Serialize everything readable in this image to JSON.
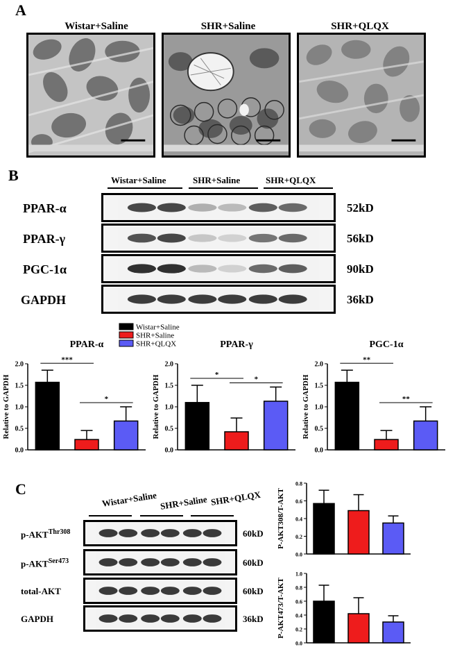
{
  "panel_a": {
    "letter": "A",
    "titles": [
      "Wistar+Saline",
      "SHR+Saline",
      "SHR+QLQX"
    ]
  },
  "panel_b": {
    "letter": "B",
    "groups": [
      "Wistar+Saline",
      "SHR+Saline",
      "SHR+QLQX"
    ],
    "blots": [
      {
        "label": "PPAR-α",
        "kd": "52kD",
        "intensity": [
          0.8,
          0.8,
          0.35,
          0.3,
          0.7,
          0.65
        ]
      },
      {
        "label": "PPAR-γ",
        "kd": "56kD",
        "intensity": [
          0.75,
          0.8,
          0.25,
          0.2,
          0.6,
          0.65
        ]
      },
      {
        "label": "PGC-1α",
        "kd": "90kD",
        "intensity": [
          0.9,
          0.9,
          0.3,
          0.2,
          0.65,
          0.7
        ]
      },
      {
        "label": "GAPDH",
        "kd": "36kD",
        "intensity": [
          0.85,
          0.85,
          0.85,
          0.85,
          0.85,
          0.85
        ]
      }
    ]
  },
  "panel_c": {
    "letter": "C",
    "groups": [
      "Wistar+Saline",
      "SHR+Saline",
      "SHR+QLQX"
    ],
    "blots": [
      {
        "label_main": "p-AKT",
        "label_sup": "Thr308",
        "kd": "60kD"
      },
      {
        "label_main": "p-AKT",
        "label_sup": "Ser473",
        "kd": "60kD"
      },
      {
        "label_main": "total-AKT",
        "label_sup": "",
        "kd": "60kD"
      },
      {
        "label_main": "GAPDH",
        "label_sup": "",
        "kd": "36kD"
      }
    ]
  },
  "colors": {
    "wistar": "#000000",
    "shr": "#ee1c1c",
    "qlqx": "#5b5bf5"
  },
  "chart_data": [
    {
      "type": "bar",
      "title": "PPAR-α",
      "ylabel": "Relative to GAPDH",
      "categories": [
        "Wistar+Saline",
        "SHR+Saline",
        "SHR+QLQX"
      ],
      "values": [
        1.57,
        0.24,
        0.67
      ],
      "errors": [
        0.28,
        0.21,
        0.33
      ],
      "ylim": [
        0,
        2.0
      ],
      "yticks": [
        "0.0",
        "0.5",
        "1.0",
        "1.5",
        "2.0"
      ],
      "sig": [
        {
          "from": 0,
          "to": 1,
          "label": "***"
        },
        {
          "from": 1,
          "to": 2,
          "label": "*"
        }
      ],
      "legend": {
        "position": "top",
        "entries": [
          "Wistar+Saline",
          "SHR+Saline",
          "SHR+QLQX"
        ]
      }
    },
    {
      "type": "bar",
      "title": "PPAR-γ",
      "ylabel": "Relative to GAPDH",
      "categories": [
        "Wistar+Saline",
        "SHR+Saline",
        "SHR+QLQX"
      ],
      "values": [
        1.1,
        0.42,
        1.13
      ],
      "errors": [
        0.4,
        0.32,
        0.33
      ],
      "ylim": [
        0,
        2.0
      ],
      "yticks": [
        "0.0",
        "0.5",
        "1.0",
        "1.5",
        "2.0"
      ],
      "sig": [
        {
          "from": 0,
          "to": 1,
          "label": "*"
        },
        {
          "from": 1,
          "to": 2,
          "label": "*"
        }
      ]
    },
    {
      "type": "bar",
      "title": "PGC-1α",
      "ylabel": "Relative to GAPDH",
      "categories": [
        "Wistar+Saline",
        "SHR+Saline",
        "SHR+QLQX"
      ],
      "values": [
        1.57,
        0.24,
        0.67
      ],
      "errors": [
        0.28,
        0.21,
        0.33
      ],
      "ylim": [
        0,
        2.0
      ],
      "yticks": [
        "0.0",
        "0.5",
        "1.0",
        "1.5",
        "2.0"
      ],
      "sig": [
        {
          "from": 0,
          "to": 1,
          "label": "**"
        },
        {
          "from": 1,
          "to": 2,
          "label": "**"
        }
      ]
    },
    {
      "type": "bar",
      "title": "",
      "ylabel": "P-AKT308/T-AKT",
      "categories": [
        "Wistar+Saline",
        "SHR+Saline",
        "SHR+QLQX"
      ],
      "values": [
        0.57,
        0.49,
        0.35
      ],
      "errors": [
        0.15,
        0.18,
        0.08
      ],
      "ylim": [
        0,
        0.8
      ],
      "yticks": [
        "0.0",
        "0.2",
        "0.4",
        "0.6",
        "0.8"
      ]
    },
    {
      "type": "bar",
      "title": "",
      "ylabel": "P-AKT473/T-AKT",
      "categories": [
        "Wistar+Saline",
        "SHR+Saline",
        "SHR+QLQX"
      ],
      "values": [
        0.6,
        0.42,
        0.3
      ],
      "errors": [
        0.23,
        0.23,
        0.09
      ],
      "ylim": [
        0,
        1.0
      ],
      "yticks": [
        "0.0",
        "0.2",
        "0.4",
        "0.6",
        "0.8",
        "1.0"
      ]
    }
  ]
}
